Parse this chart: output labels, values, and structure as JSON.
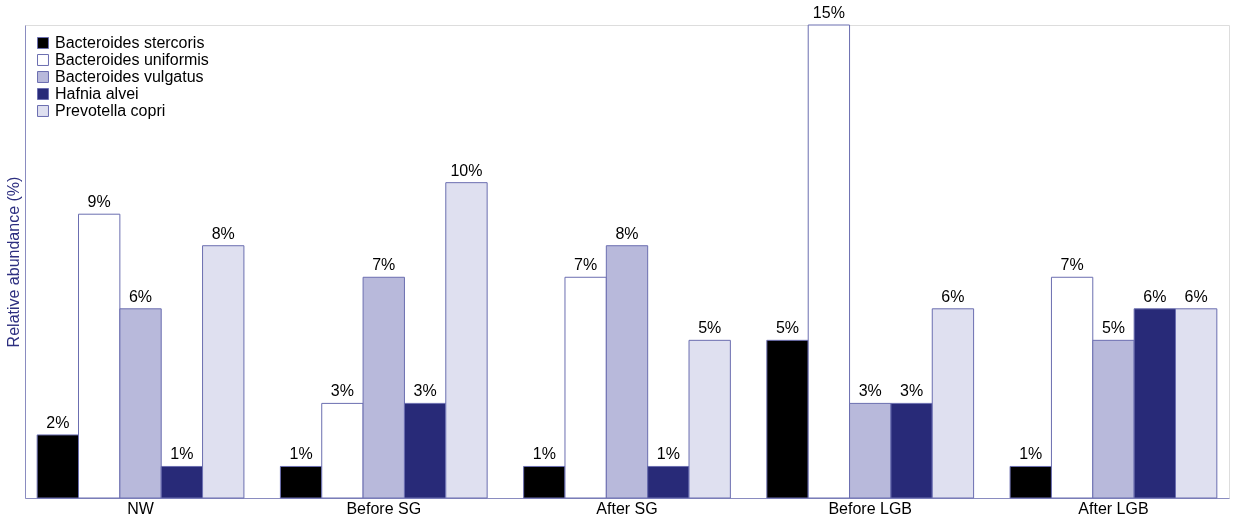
{
  "chart_data": {
    "type": "bar",
    "ylabel": "Relative abundance (%)",
    "categories": [
      "NW",
      "Before SG",
      "After SG",
      "Before LGB",
      "After LGB"
    ],
    "legend": "top left",
    "grid": false,
    "series": [
      {
        "name": "Bacteroides stercoris",
        "color": "#000000",
        "values": [
          2,
          1,
          1,
          5,
          1
        ],
        "value_labels": [
          "2%",
          "1%",
          "1%",
          "5%",
          "1%"
        ]
      },
      {
        "name": "Bacteroides uniformis",
        "color": "#ffffff",
        "values": [
          9,
          3,
          7,
          15,
          7
        ],
        "value_labels": [
          "9%",
          "3%",
          "7%",
          "15%",
          "7%"
        ]
      },
      {
        "name": "Bacteroides vulgatus",
        "color": "#b8b9db",
        "values": [
          6,
          7,
          8,
          3,
          5
        ],
        "value_labels": [
          "6%",
          "7%",
          "8%",
          "3%",
          "5%"
        ]
      },
      {
        "name": "Hafnia alvei",
        "color": "#282a78",
        "values": [
          1,
          3,
          1,
          3,
          6
        ],
        "value_labels": [
          "1%",
          "3%",
          "1%",
          "3%",
          "6%"
        ]
      },
      {
        "name": "Prevotella copri",
        "color": "#dfe0f0",
        "values": [
          8,
          10,
          5,
          6,
          6
        ],
        "value_labels": [
          "8%",
          "10%",
          "5%",
          "6%",
          "6%"
        ]
      }
    ]
  }
}
